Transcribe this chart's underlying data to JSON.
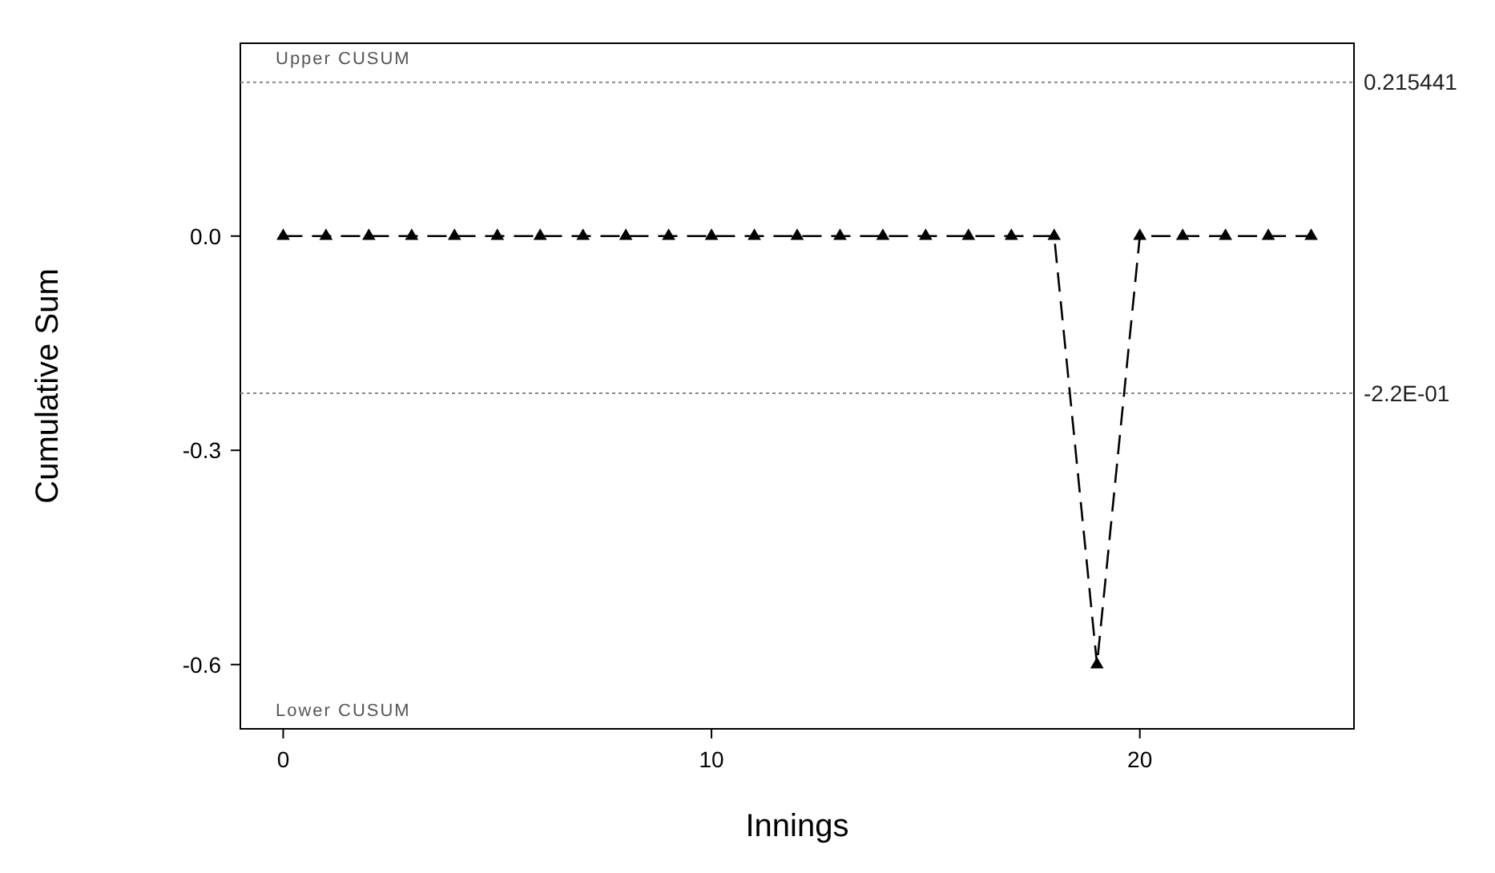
{
  "chart_data": {
    "type": "line",
    "xlabel": "Innings",
    "ylabel": "Cumulative Sum",
    "x": [
      0,
      1,
      2,
      3,
      4,
      5,
      6,
      7,
      8,
      9,
      10,
      11,
      12,
      13,
      14,
      15,
      16,
      17,
      18,
      19,
      20,
      21,
      22,
      23,
      24
    ],
    "series": [
      {
        "color": "#000000",
        "values": [
          0,
          0,
          0,
          0,
          0,
          0,
          0,
          0,
          0,
          0,
          0,
          0,
          0,
          0,
          0,
          0,
          0,
          0,
          0,
          -0.6,
          0,
          0,
          0,
          0,
          0
        ]
      }
    ],
    "xlim": [
      -1,
      25
    ],
    "xticks": [
      0,
      10,
      20
    ],
    "ylim": [
      -0.69,
      0.27
    ],
    "yticks": [
      {
        "value": 0,
        "label": "0.0"
      },
      {
        "value": -0.3,
        "label": "-0.3"
      },
      {
        "value": -0.6,
        "label": "-0.6"
      }
    ],
    "ref_lines": [
      {
        "axis": "y",
        "value": 0.215441,
        "label": "0.215441",
        "color": "#888888",
        "line_style": "dotted"
      },
      {
        "axis": "y",
        "value": -0.22,
        "label": "-2.2E-01",
        "color": "#888888",
        "line_style": "dotted"
      }
    ],
    "annotations": [
      "Upper CUSUM",
      "Lower CUSUM"
    ],
    "marker": "triangle",
    "line_style": "dashed",
    "grid": false
  }
}
